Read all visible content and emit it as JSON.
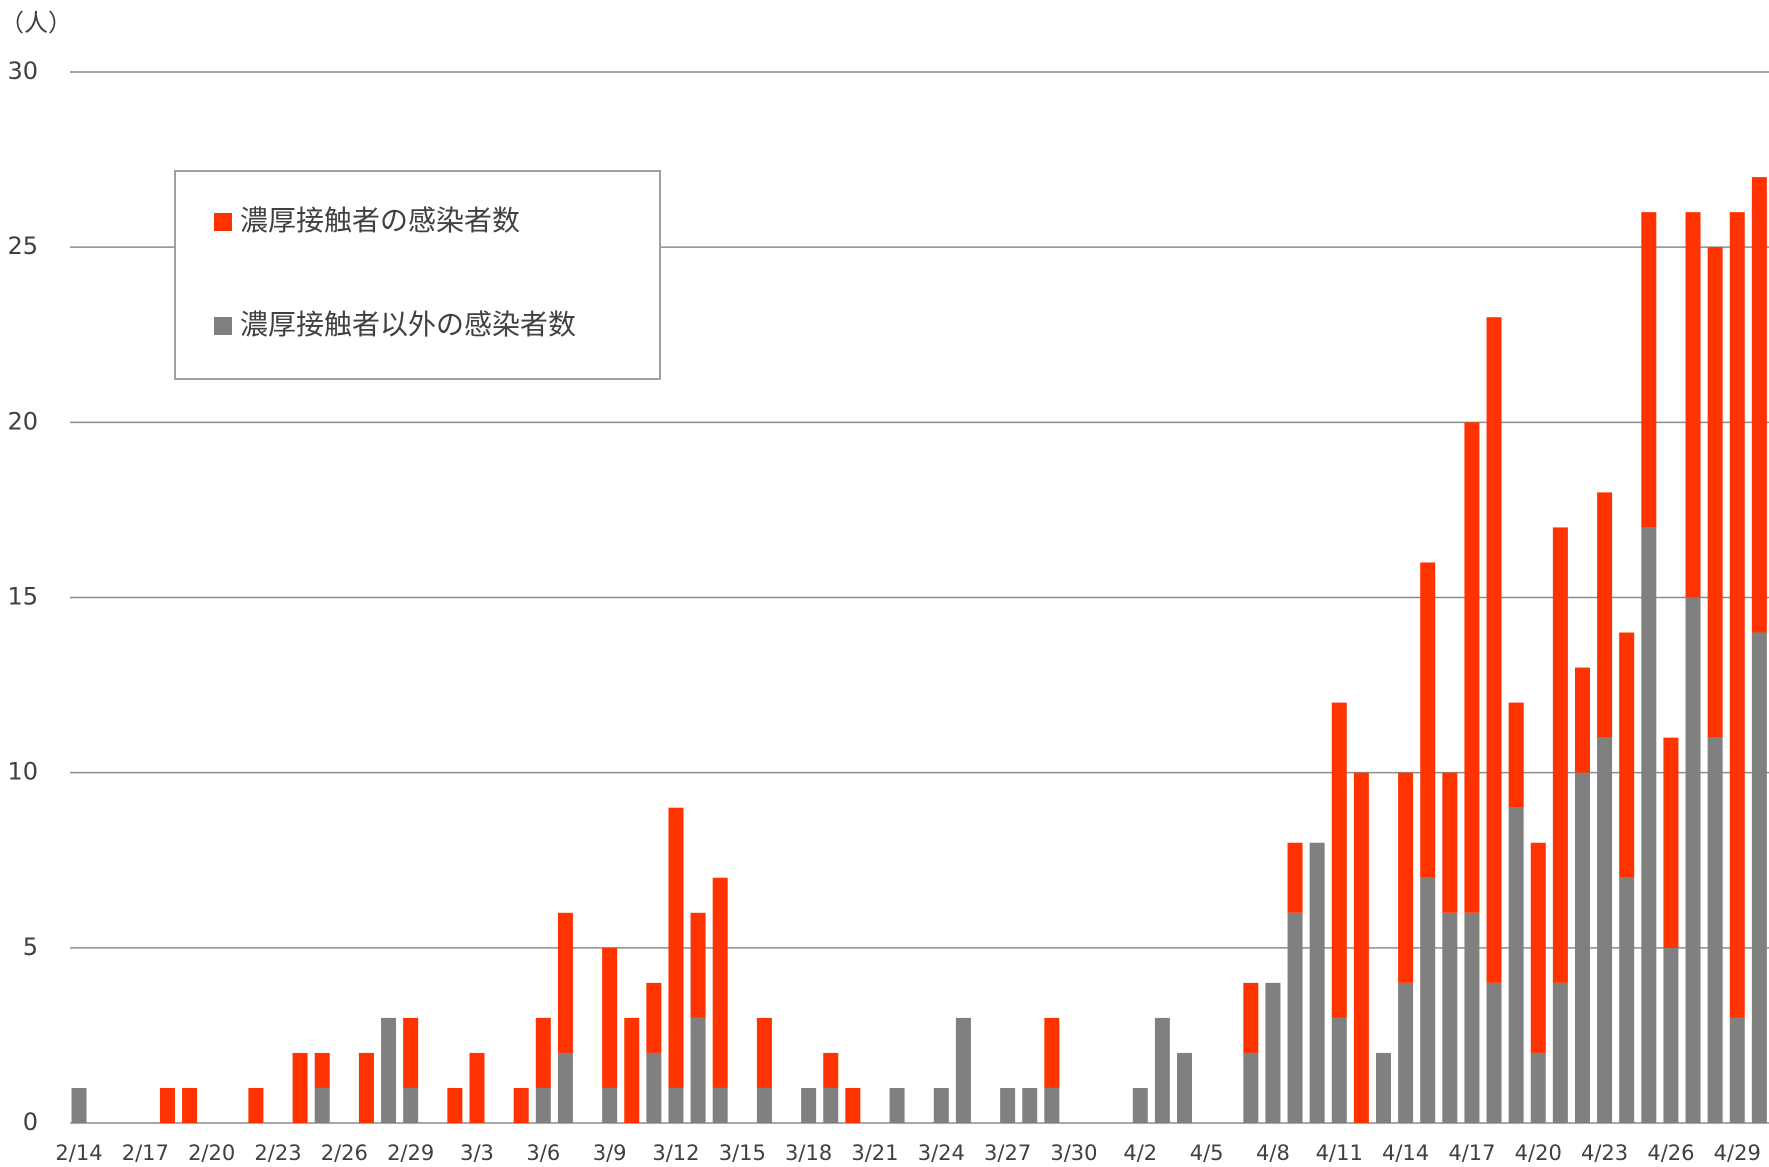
{
  "chart_data": {
    "type": "stacked_bar",
    "y_label": "（人）",
    "categories": [
      "2/14",
      null,
      null,
      "2/17",
      null,
      null,
      "2/20",
      null,
      null,
      "2/23",
      null,
      null,
      "2/26",
      null,
      null,
      "2/29",
      null,
      null,
      "3/3",
      null,
      null,
      "3/6",
      null,
      null,
      "3/9",
      null,
      null,
      "3/12",
      null,
      null,
      "3/15",
      null,
      null,
      "3/18",
      null,
      null,
      "3/21",
      null,
      null,
      "3/24",
      null,
      null,
      "3/27",
      null,
      null,
      "3/30",
      null,
      null,
      "4/2",
      null,
      null,
      "4/5",
      null,
      null,
      "4/8",
      null,
      null,
      "4/11",
      null,
      null,
      "4/14",
      null,
      null,
      "4/17",
      null,
      null,
      "4/20",
      null,
      null,
      "4/23",
      null,
      null,
      "4/26",
      null,
      null,
      "4/29",
      null
    ],
    "series": [
      {
        "name": "濃厚接触者の感染者数",
        "color": "#ff3300",
        "values": [
          0,
          0,
          0,
          0,
          1,
          1,
          0,
          0,
          1,
          0,
          2,
          1,
          0,
          2,
          0,
          2,
          0,
          1,
          2,
          0,
          1,
          2,
          4,
          0,
          4,
          3,
          2,
          8,
          3,
          6,
          0,
          2,
          0,
          0,
          1,
          1,
          0,
          0,
          0,
          0,
          0,
          0,
          0,
          0,
          2,
          0,
          0,
          0,
          0,
          0,
          0,
          0,
          0,
          2,
          0,
          2,
          0,
          9,
          10,
          0,
          6,
          9,
          4,
          14,
          19,
          3,
          6,
          13,
          3,
          7,
          7,
          9,
          6,
          11,
          14,
          23,
          13
        ]
      },
      {
        "name": "濃厚接触者以外の感染者数",
        "color": "#808080",
        "values": [
          1,
          0,
          0,
          0,
          0,
          0,
          0,
          0,
          0,
          0,
          0,
          1,
          0,
          0,
          3,
          1,
          0,
          0,
          0,
          0,
          0,
          1,
          2,
          0,
          1,
          0,
          2,
          1,
          3,
          1,
          0,
          1,
          0,
          1,
          1,
          0,
          0,
          1,
          0,
          1,
          3,
          0,
          1,
          1,
          1,
          0,
          0,
          0,
          1,
          3,
          2,
          0,
          0,
          2,
          4,
          6,
          8,
          3,
          0,
          2,
          4,
          7,
          6,
          6,
          4,
          9,
          2,
          4,
          10,
          11,
          7,
          17,
          5,
          15,
          11,
          3,
          14
        ]
      }
    ],
    "ylim": [
      0,
      30
    ],
    "yticks": [
      0,
      5,
      10,
      15,
      20,
      25,
      30
    ],
    "grid": true
  }
}
